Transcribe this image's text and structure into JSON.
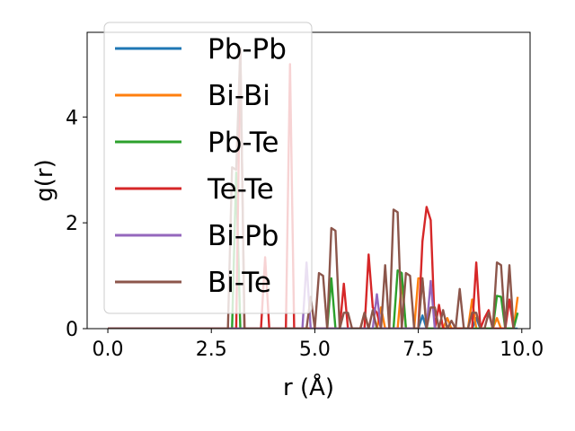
{
  "chart_data": {
    "type": "line",
    "title": "",
    "xlabel": "r (Å)",
    "ylabel": "g(r)",
    "xlim": [
      -0.5,
      10.2
    ],
    "ylim": [
      0,
      5.6
    ],
    "xticks": [
      0.0,
      2.5,
      5.0,
      7.5,
      10.0
    ],
    "xtick_labels": [
      "0.0",
      "2.5",
      "5.0",
      "7.5",
      "10.0"
    ],
    "yticks": [
      0,
      2,
      4
    ],
    "ytick_labels": [
      "0",
      "2",
      "4"
    ],
    "grid": false,
    "legend_placement": "top-left",
    "series": [
      {
        "name": "Pb-Pb",
        "color": "#1f77b4",
        "x": [
          0.0,
          7.5,
          7.6,
          7.7,
          8.8,
          8.9,
          9.0,
          9.9
        ],
        "y": [
          0,
          0,
          0.25,
          0,
          0,
          0.2,
          0,
          0
        ]
      },
      {
        "name": "Bi-Bi",
        "color": "#ff7f0e",
        "x": [
          0.0,
          6.1,
          6.2,
          6.3,
          6.5,
          6.6,
          6.7,
          7.0,
          7.1,
          7.2,
          7.4,
          7.5,
          7.6,
          7.7,
          7.8,
          8.1,
          8.2,
          8.3,
          8.7,
          8.8,
          8.9,
          9.3,
          9.4,
          9.5,
          9.8,
          9.9
        ],
        "y": [
          0,
          0,
          0.3,
          0,
          0,
          0.4,
          0,
          0,
          0.9,
          0,
          0,
          0.95,
          0.95,
          0,
          0,
          0,
          0.2,
          0,
          0,
          0.55,
          0,
          0,
          0.2,
          0,
          0,
          0.6
        ]
      },
      {
        "name": "Pb-Te",
        "color": "#2ca02c",
        "x": [
          0.0,
          3.0,
          3.1,
          3.2,
          5.3,
          5.4,
          5.5,
          6.9,
          7.0,
          7.1,
          7.2,
          7.3,
          9.3,
          9.4,
          9.5,
          9.6,
          9.7,
          9.8,
          9.9
        ],
        "y": [
          0,
          0,
          2.95,
          0,
          0,
          0.95,
          0,
          0,
          1.1,
          1.05,
          0,
          0,
          0,
          0.62,
          0.6,
          0,
          0,
          0,
          0.3
        ]
      },
      {
        "name": "Te-Te",
        "color": "#d62728",
        "x": [
          0.0,
          3.1,
          3.2,
          3.3,
          3.7,
          3.8,
          3.9,
          4.3,
          4.4,
          4.5,
          5.6,
          5.7,
          5.8,
          6.2,
          6.3,
          6.4,
          6.5,
          6.6,
          7.5,
          7.6,
          7.7,
          7.8,
          7.9,
          8.0,
          8.1,
          8.8,
          8.9,
          9.0,
          9.1,
          9.2,
          9.3,
          9.6,
          9.7,
          9.8
        ],
        "y": [
          0,
          0,
          5.3,
          0,
          0,
          1.35,
          0,
          0,
          5.0,
          0,
          0,
          0.85,
          0,
          0,
          1.4,
          0.4,
          0.3,
          0,
          0,
          1.65,
          2.3,
          2.05,
          0,
          0.45,
          0,
          0,
          1.25,
          0,
          0.2,
          0.35,
          0,
          0,
          0.55,
          0
        ]
      },
      {
        "name": "Bi-Pb",
        "color": "#9467bd",
        "x": [
          0.0,
          4.7,
          4.8,
          4.9,
          5.0,
          6.4,
          6.5,
          6.6,
          7.7,
          7.8,
          7.9,
          8.0
        ],
        "y": [
          0,
          0,
          1.25,
          0,
          0,
          0,
          0.65,
          0,
          0,
          0.9,
          0,
          0
        ]
      },
      {
        "name": "Bi-Te",
        "color": "#8c564b",
        "x": [
          0.0,
          2.9,
          3.0,
          3.1,
          3.2,
          3.3,
          3.4,
          4.7,
          4.8,
          4.9,
          5.0,
          5.1,
          5.2,
          5.3,
          5.4,
          5.5,
          5.6,
          5.7,
          5.8,
          5.9,
          6.1,
          6.2,
          6.3,
          6.4,
          6.5,
          6.6,
          6.7,
          6.8,
          6.9,
          7.0,
          7.1,
          7.2,
          7.3,
          7.4,
          7.5,
          7.6,
          7.7,
          7.8,
          7.9,
          8.0,
          8.1,
          8.2,
          8.3,
          8.4,
          8.5,
          8.6,
          8.7,
          8.8,
          8.9,
          9.0,
          9.1,
          9.2,
          9.3,
          9.4,
          9.5,
          9.6,
          9.7,
          9.8
        ],
        "y": [
          0,
          0,
          3.05,
          3.0,
          5.3,
          0,
          0,
          0,
          0,
          0.6,
          0,
          1.05,
          1.0,
          0,
          1.9,
          1.85,
          0,
          0.3,
          0.3,
          0,
          0,
          0.3,
          0,
          0.35,
          0,
          0,
          1.2,
          0,
          2.25,
          2.2,
          0,
          1.05,
          1.0,
          0,
          0,
          0.95,
          0,
          0.4,
          0.4,
          0,
          0.35,
          0,
          0.15,
          0,
          0.75,
          0,
          0,
          0.3,
          0.3,
          0,
          0,
          0.3,
          0,
          1.25,
          1.2,
          0,
          1.2,
          0
        ]
      }
    ]
  }
}
